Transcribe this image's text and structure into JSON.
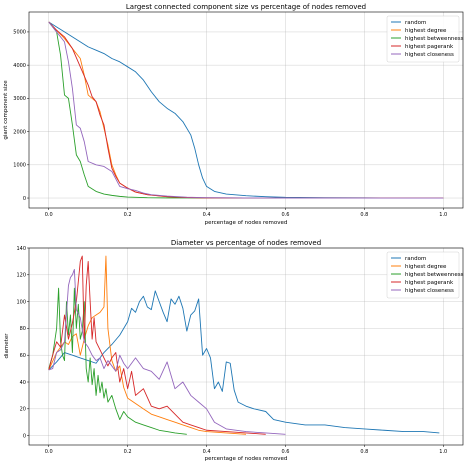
{
  "chart_data": [
    {
      "type": "line",
      "title": "Largest connected component size vs percentage of nodes removed",
      "xlabel": "percentage of nodes removed",
      "ylabel": "giant component size",
      "xlim": [
        -0.05,
        1.05
      ],
      "ylim": [
        -300,
        5600
      ],
      "xticks": [
        0.0,
        0.2,
        0.4,
        0.6,
        0.8,
        1.0
      ],
      "yticks": [
        0,
        1000,
        2000,
        3000,
        4000,
        5000
      ],
      "xtick_labels": [
        "0.0",
        "0.2",
        "0.4",
        "0.6",
        "0.8",
        "1.0"
      ],
      "ytick_labels": [
        "0",
        "1000",
        "2000",
        "3000",
        "4000",
        "5000"
      ],
      "grid": true,
      "legend_position": "top-right",
      "series": [
        {
          "name": "random",
          "color": "#1f77b4",
          "x": [
            0.0,
            0.02,
            0.04,
            0.06,
            0.08,
            0.1,
            0.12,
            0.14,
            0.16,
            0.18,
            0.2,
            0.22,
            0.24,
            0.26,
            0.28,
            0.3,
            0.32,
            0.34,
            0.36,
            0.37,
            0.38,
            0.39,
            0.4,
            0.42,
            0.45,
            0.5,
            0.55,
            0.6,
            0.7,
            0.8,
            0.9,
            1.0
          ],
          "y": [
            5300,
            5150,
            5000,
            4850,
            4700,
            4550,
            4450,
            4350,
            4200,
            4100,
            3950,
            3800,
            3550,
            3200,
            2900,
            2700,
            2550,
            2300,
            1900,
            1500,
            1000,
            600,
            350,
            200,
            120,
            70,
            40,
            20,
            10,
            5,
            2,
            0
          ]
        },
        {
          "name": "highest degree",
          "color": "#ff7f0e",
          "x": [
            0.0,
            0.02,
            0.04,
            0.06,
            0.08,
            0.09,
            0.1,
            0.12,
            0.13,
            0.14,
            0.15,
            0.16,
            0.17,
            0.18,
            0.2,
            0.22,
            0.25,
            0.3,
            0.35,
            0.4,
            0.5,
            0.6,
            0.8,
            1.0
          ],
          "y": [
            5300,
            5050,
            4800,
            4500,
            4200,
            3700,
            3100,
            2900,
            2600,
            2100,
            1600,
            1000,
            700,
            450,
            300,
            180,
            100,
            40,
            15,
            5,
            2,
            0,
            0,
            0
          ]
        },
        {
          "name": "highest betweenness",
          "color": "#2ca02c",
          "x": [
            0.0,
            0.02,
            0.03,
            0.04,
            0.05,
            0.06,
            0.07,
            0.08,
            0.09,
            0.1,
            0.12,
            0.14,
            0.16,
            0.18,
            0.2,
            0.25,
            0.3,
            0.4,
            0.5,
            0.6,
            0.8,
            1.0
          ],
          "y": [
            5300,
            5000,
            4300,
            3100,
            3000,
            2200,
            1300,
            1100,
            700,
            350,
            200,
            120,
            80,
            50,
            30,
            10,
            5,
            2,
            0,
            0,
            0,
            0
          ]
        },
        {
          "name": "highest pagerank",
          "color": "#d62728",
          "x": [
            0.0,
            0.02,
            0.04,
            0.06,
            0.08,
            0.1,
            0.11,
            0.12,
            0.13,
            0.14,
            0.15,
            0.16,
            0.17,
            0.18,
            0.2,
            0.22,
            0.25,
            0.3,
            0.35,
            0.4,
            0.5,
            0.6,
            0.8,
            1.0
          ],
          "y": [
            5300,
            5050,
            4850,
            4500,
            3950,
            3400,
            3050,
            2900,
            2500,
            2200,
            1500,
            900,
            650,
            450,
            300,
            180,
            100,
            40,
            15,
            5,
            2,
            0,
            0,
            0
          ]
        },
        {
          "name": "highest closeness",
          "color": "#9467bd",
          "x": [
            0.0,
            0.02,
            0.04,
            0.05,
            0.06,
            0.07,
            0.08,
            0.09,
            0.1,
            0.12,
            0.14,
            0.16,
            0.18,
            0.2,
            0.22,
            0.24,
            0.26,
            0.3,
            0.35,
            0.4,
            0.5,
            0.6,
            0.8,
            1.0
          ],
          "y": [
            5300,
            5000,
            4700,
            4100,
            3300,
            2200,
            2100,
            1700,
            1100,
            1000,
            950,
            800,
            350,
            280,
            230,
            150,
            100,
            60,
            25,
            10,
            3,
            0,
            0,
            0
          ]
        }
      ]
    },
    {
      "type": "line",
      "title": "Diameter vs percentage of nodes removed",
      "xlabel": "percentage of nodes removed",
      "ylabel": "diameter",
      "xlim": [
        -0.05,
        1.05
      ],
      "ylim": [
        -7,
        140
      ],
      "xticks": [
        0.0,
        0.2,
        0.4,
        0.6,
        0.8,
        1.0
      ],
      "yticks": [
        0,
        20,
        40,
        60,
        80,
        100,
        120,
        140
      ],
      "xtick_labels": [
        "0.0",
        "0.2",
        "0.4",
        "0.6",
        "0.8",
        "1.0"
      ],
      "ytick_labels": [
        "0",
        "20",
        "40",
        "60",
        "80",
        "100",
        "120",
        "140"
      ],
      "grid": true,
      "legend_position": "top-right",
      "series": [
        {
          "name": "random",
          "color": "#1f77b4",
          "x": [
            0.0,
            0.02,
            0.04,
            0.06,
            0.08,
            0.1,
            0.12,
            0.14,
            0.16,
            0.18,
            0.2,
            0.21,
            0.22,
            0.23,
            0.24,
            0.25,
            0.26,
            0.27,
            0.28,
            0.29,
            0.3,
            0.31,
            0.32,
            0.33,
            0.34,
            0.35,
            0.36,
            0.37,
            0.38,
            0.39,
            0.4,
            0.41,
            0.42,
            0.43,
            0.44,
            0.45,
            0.46,
            0.47,
            0.48,
            0.5,
            0.52,
            0.55,
            0.57,
            0.6,
            0.65,
            0.7,
            0.75,
            0.8,
            0.85,
            0.9,
            0.95,
            0.99
          ],
          "y": [
            49,
            55,
            62,
            60,
            58,
            56,
            54,
            62,
            68,
            75,
            85,
            95,
            92,
            100,
            104,
            96,
            94,
            108,
            100,
            92,
            85,
            102,
            98,
            104,
            95,
            78,
            90,
            93,
            102,
            60,
            65,
            58,
            35,
            40,
            33,
            55,
            54,
            34,
            25,
            22,
            20,
            18,
            12,
            10,
            8,
            8,
            6,
            5,
            4,
            3,
            3,
            2
          ]
        },
        {
          "name": "highest degree",
          "color": "#ff7f0e",
          "x": [
            0.0,
            0.02,
            0.04,
            0.05,
            0.06,
            0.07,
            0.08,
            0.09,
            0.1,
            0.11,
            0.12,
            0.13,
            0.14,
            0.145,
            0.15,
            0.16,
            0.17,
            0.18,
            0.19,
            0.2,
            0.22,
            0.24,
            0.26,
            0.28,
            0.3,
            0.32,
            0.34,
            0.36,
            0.38,
            0.4,
            0.45,
            0.5
          ],
          "y": [
            49,
            62,
            70,
            68,
            74,
            76,
            60,
            72,
            82,
            88,
            90,
            92,
            96,
            134,
            80,
            56,
            48,
            52,
            36,
            28,
            24,
            20,
            16,
            14,
            12,
            10,
            8,
            6,
            4,
            3,
            2,
            1
          ]
        },
        {
          "name": "highest betweenness",
          "color": "#2ca02c",
          "x": [
            0.0,
            0.01,
            0.02,
            0.025,
            0.03,
            0.035,
            0.04,
            0.045,
            0.05,
            0.055,
            0.06,
            0.065,
            0.07,
            0.075,
            0.08,
            0.085,
            0.09,
            0.095,
            0.1,
            0.105,
            0.11,
            0.115,
            0.12,
            0.125,
            0.13,
            0.135,
            0.14,
            0.145,
            0.15,
            0.16,
            0.17,
            0.18,
            0.19,
            0.2,
            0.22,
            0.24,
            0.26,
            0.28,
            0.3,
            0.32,
            0.35
          ],
          "y": [
            50,
            60,
            80,
            110,
            70,
            60,
            56,
            100,
            75,
            90,
            62,
            110,
            80,
            98,
            72,
            78,
            100,
            50,
            40,
            58,
            38,
            50,
            30,
            45,
            32,
            40,
            28,
            35,
            25,
            30,
            20,
            12,
            18,
            14,
            10,
            8,
            6,
            4,
            3,
            2,
            1
          ]
        },
        {
          "name": "highest pagerank",
          "color": "#d62728",
          "x": [
            0.0,
            0.01,
            0.02,
            0.03,
            0.04,
            0.05,
            0.06,
            0.07,
            0.08,
            0.085,
            0.09,
            0.095,
            0.1,
            0.105,
            0.11,
            0.115,
            0.12,
            0.13,
            0.14,
            0.15,
            0.16,
            0.17,
            0.18,
            0.19,
            0.2,
            0.21,
            0.22,
            0.24,
            0.26,
            0.28,
            0.3,
            0.32,
            0.34,
            0.36,
            0.38,
            0.4,
            0.45,
            0.5,
            0.55
          ],
          "y": [
            49,
            60,
            70,
            66,
            90,
            72,
            84,
            100,
            130,
            134,
            70,
            112,
            130,
            100,
            72,
            88,
            70,
            64,
            58,
            52,
            58,
            62,
            40,
            50,
            35,
            48,
            30,
            35,
            22,
            20,
            22,
            16,
            10,
            8,
            6,
            4,
            3,
            2,
            1
          ]
        },
        {
          "name": "highest closeness",
          "color": "#9467bd",
          "x": [
            0.0,
            0.01,
            0.02,
            0.03,
            0.04,
            0.05,
            0.055,
            0.06,
            0.065,
            0.07,
            0.08,
            0.09,
            0.1,
            0.11,
            0.12,
            0.13,
            0.14,
            0.15,
            0.16,
            0.17,
            0.18,
            0.19,
            0.2,
            0.22,
            0.24,
            0.26,
            0.28,
            0.3,
            0.32,
            0.34,
            0.36,
            0.38,
            0.4,
            0.42,
            0.45,
            0.5,
            0.55,
            0.6
          ],
          "y": [
            49,
            50,
            62,
            64,
            70,
            112,
            118,
            120,
            124,
            94,
            88,
            70,
            66,
            60,
            56,
            58,
            50,
            56,
            52,
            48,
            60,
            54,
            50,
            58,
            50,
            48,
            42,
            55,
            35,
            40,
            30,
            25,
            20,
            10,
            5,
            3,
            2,
            1
          ]
        }
      ]
    }
  ]
}
